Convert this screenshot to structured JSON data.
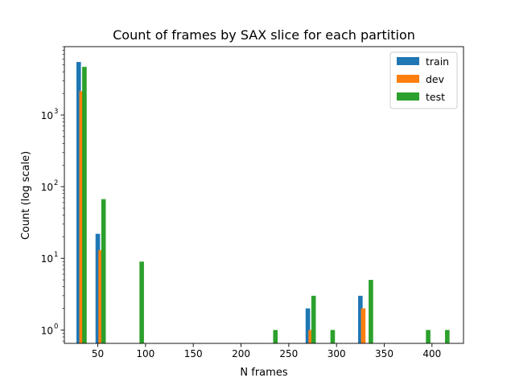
{
  "chart_data": {
    "type": "bar",
    "title": "Count of frames by SAX slice for each partition",
    "xlabel": "N frames",
    "ylabel": "Count (log scale)",
    "yscale": "log",
    "xlim": [
      15,
      433
    ],
    "ylim": [
      0.65,
      9000
    ],
    "grid": false,
    "legend_position": "top-right",
    "x_ticks": [
      50,
      100,
      150,
      200,
      250,
      300,
      350,
      400
    ],
    "x_tick_labels": [
      "50",
      "100",
      "150",
      "200",
      "250",
      "300",
      "350",
      "400"
    ],
    "y_ticks": [
      1,
      10,
      100,
      1000
    ],
    "y_tick_labels": [
      "10",
      "10",
      "10",
      "10"
    ],
    "y_tick_exponents": [
      "0",
      "1",
      "2",
      "3"
    ],
    "series": [
      {
        "name": "train",
        "color": "#1f77b4",
        "bars": [
          {
            "x": 30,
            "y": 5500
          },
          {
            "x": 50,
            "y": 22
          },
          {
            "x": 270,
            "y": 2
          },
          {
            "x": 325,
            "y": 3
          }
        ]
      },
      {
        "name": "dev",
        "color": "#ff7f0e",
        "bars": [
          {
            "x": 33,
            "y": 2150
          },
          {
            "x": 53,
            "y": 13
          },
          {
            "x": 273,
            "y": 1
          },
          {
            "x": 328,
            "y": 2
          }
        ]
      },
      {
        "name": "test",
        "color": "#2ca02c",
        "bars": [
          {
            "x": 36,
            "y": 4700
          },
          {
            "x": 56,
            "y": 67
          },
          {
            "x": 96,
            "y": 9
          },
          {
            "x": 236,
            "y": 1
          },
          {
            "x": 276,
            "y": 3
          },
          {
            "x": 296,
            "y": 1
          },
          {
            "x": 336,
            "y": 5
          },
          {
            "x": 396,
            "y": 1
          },
          {
            "x": 416,
            "y": 1
          }
        ]
      }
    ]
  }
}
